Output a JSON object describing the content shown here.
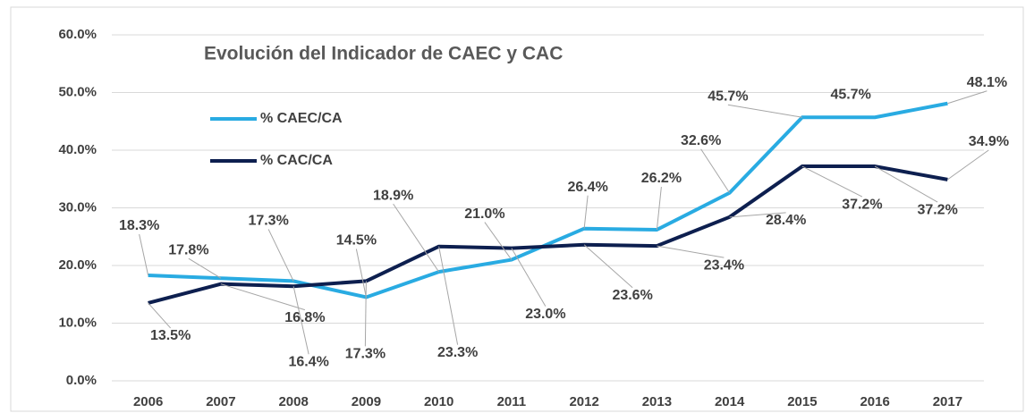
{
  "chart_data": {
    "type": "line",
    "title": "Evolución del Indicador de CAEC y CAC",
    "categories": [
      "2006",
      "2007",
      "2008",
      "2009",
      "2010",
      "2011",
      "2012",
      "2013",
      "2014",
      "2015",
      "2016",
      "2017"
    ],
    "series": [
      {
        "name": "% CAEC/CA",
        "color": "#29abe2",
        "values": [
          18.3,
          17.8,
          17.3,
          14.5,
          18.9,
          21.0,
          26.4,
          26.2,
          32.6,
          45.7,
          45.7,
          48.1
        ],
        "value_labels": [
          "18.3%",
          "17.8%",
          "17.3%",
          "14.5%",
          "18.9%",
          "21.0%",
          "26.4%",
          "26.2%",
          "32.6%",
          "45.7%",
          "45.7%",
          "48.1%"
        ]
      },
      {
        "name": "% CAC/CA",
        "color": "#0d1f4f",
        "values": [
          13.5,
          16.8,
          16.4,
          17.3,
          23.3,
          23.0,
          23.6,
          23.4,
          28.4,
          37.2,
          37.2,
          34.9
        ],
        "value_labels": [
          "13.5%",
          "16.8%",
          "16.4%",
          "17.3%",
          "23.3%",
          "23.0%",
          "23.6%",
          "23.4%",
          "28.4%",
          "37.2%",
          "37.2%",
          "34.9%"
        ]
      }
    ],
    "ylim": [
      0,
      60
    ],
    "yticks": [
      {
        "value": 0,
        "label": "0.0%"
      },
      {
        "value": 10,
        "label": "10.0%"
      },
      {
        "value": 20,
        "label": "20.0%"
      },
      {
        "value": 30,
        "label": "30.0%"
      },
      {
        "value": 40,
        "label": "40.0%"
      },
      {
        "value": 50,
        "label": "50.0%"
      },
      {
        "value": 60,
        "label": "60.0%"
      }
    ],
    "grid": true,
    "legend": "upper left"
  }
}
